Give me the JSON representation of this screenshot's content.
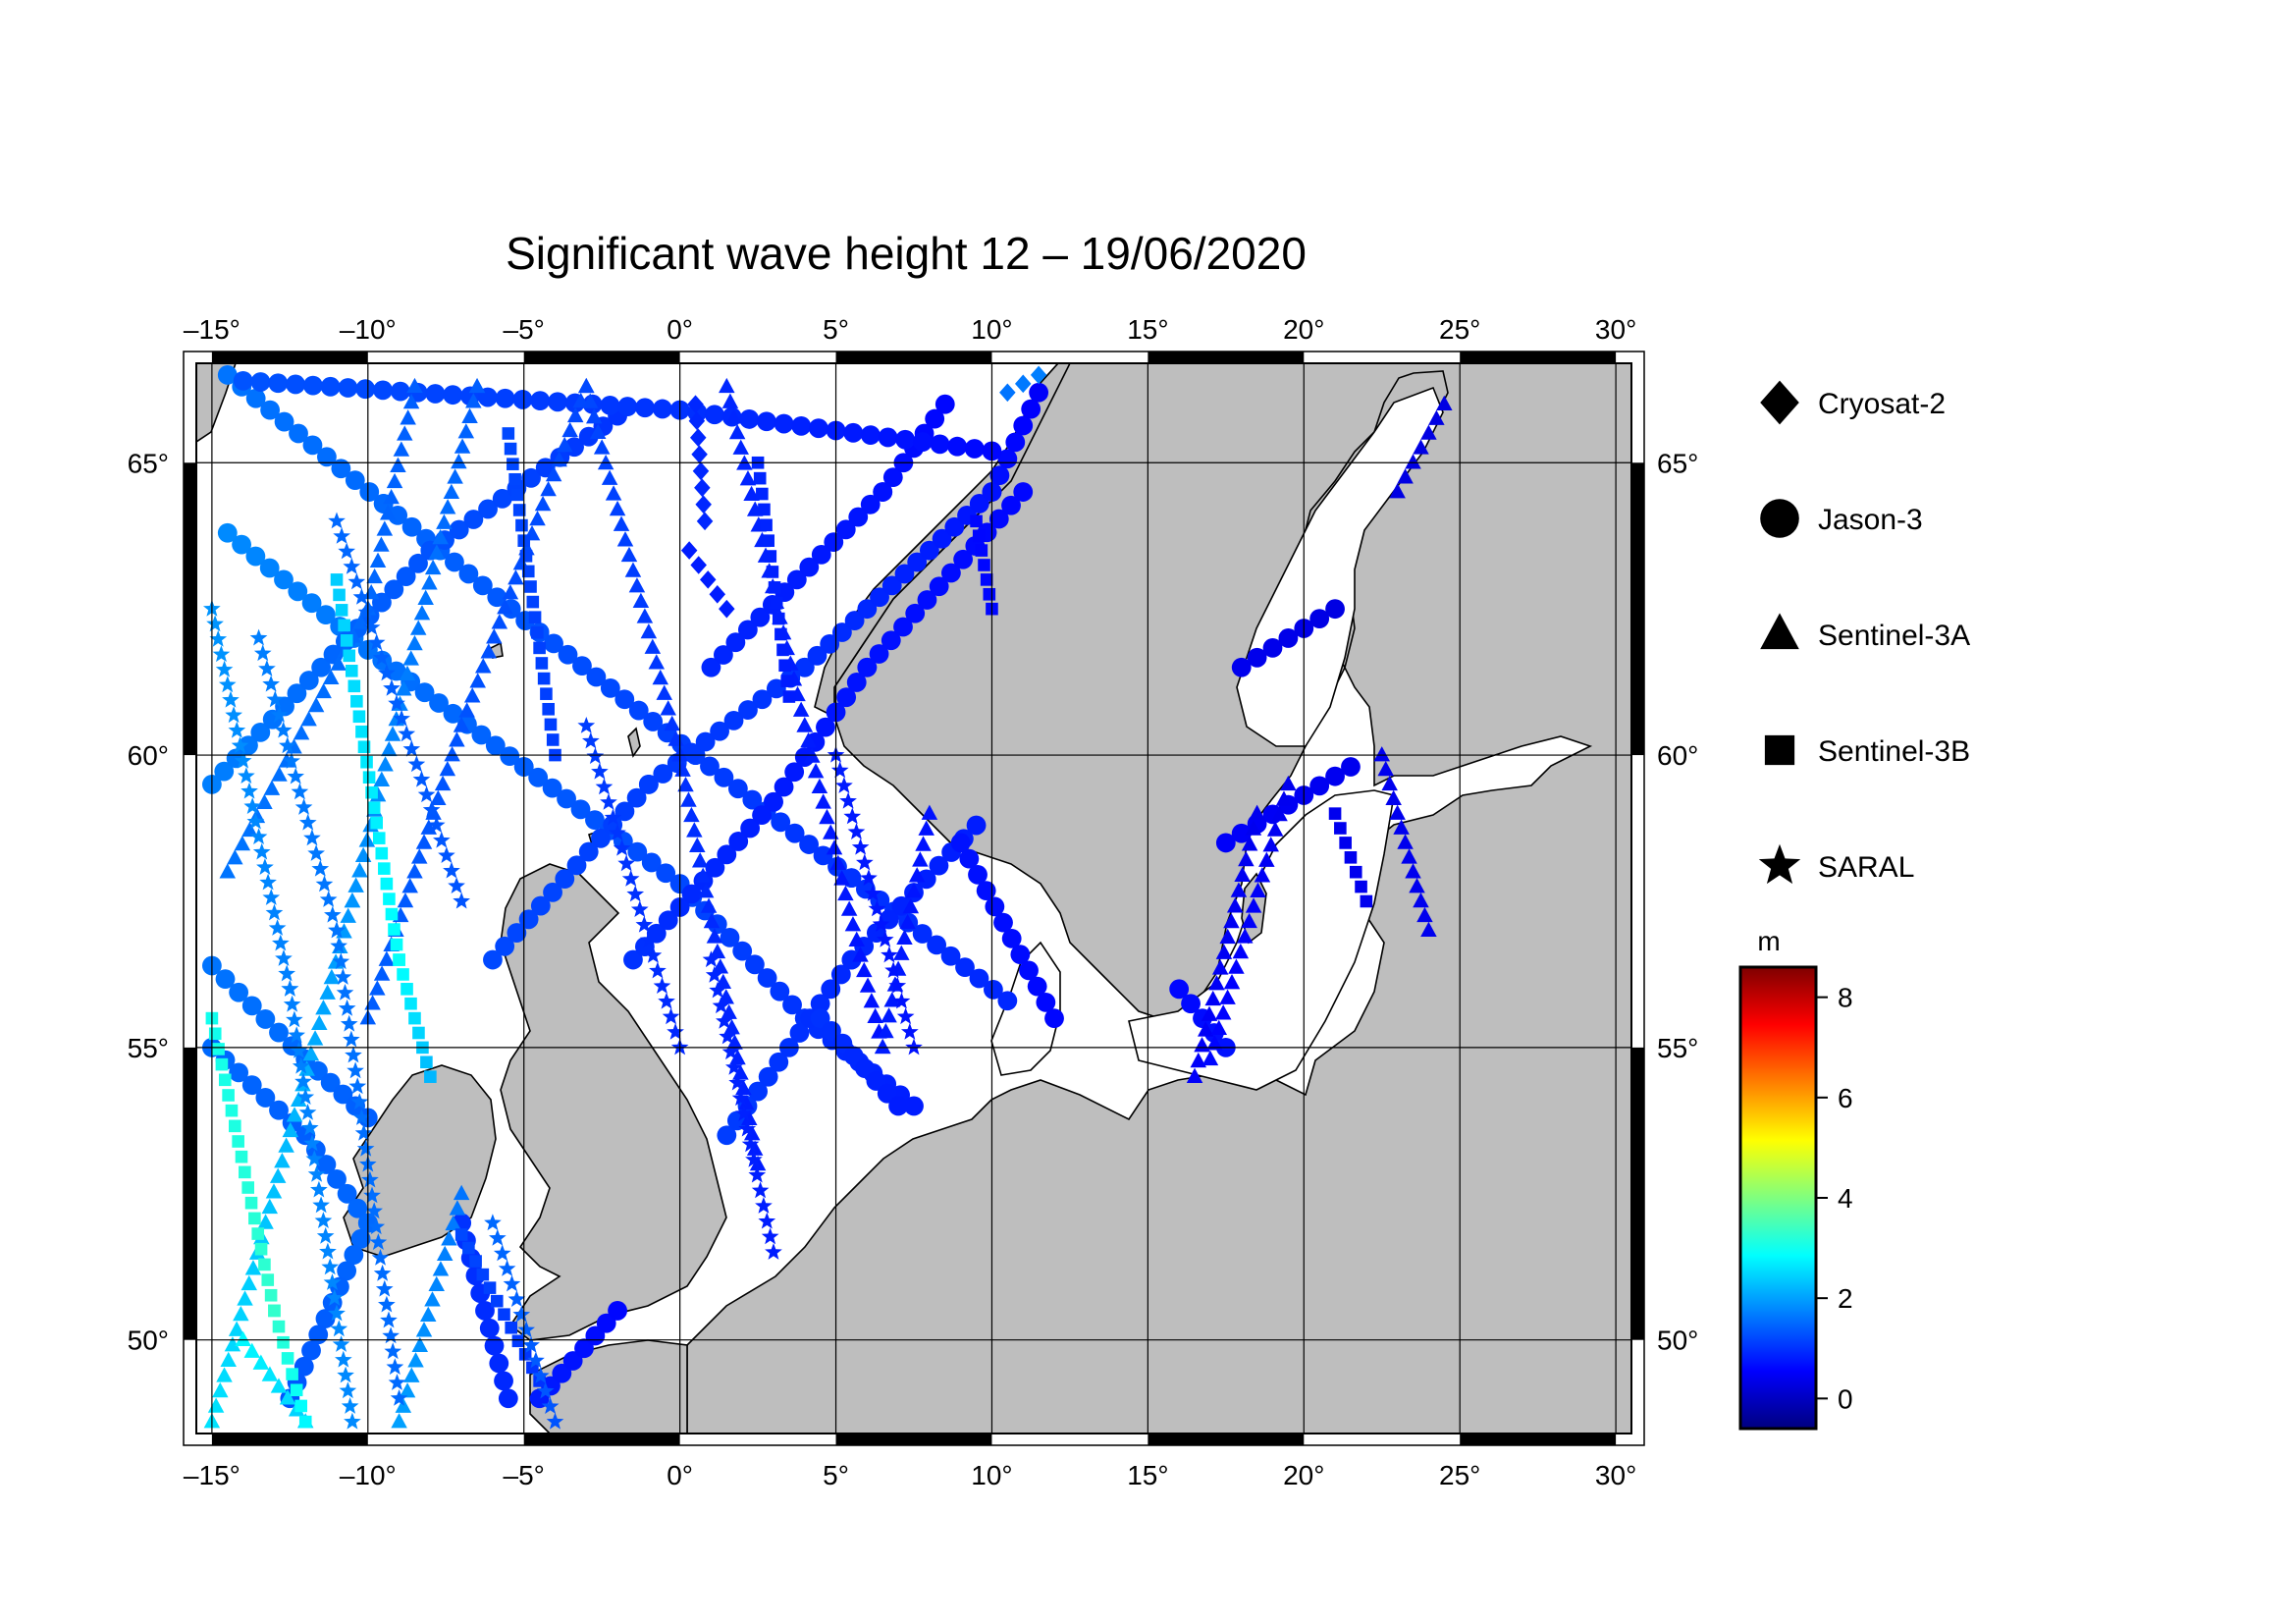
{
  "chart_data": {
    "type": "scatter",
    "title": "Significant wave height 12 – 19/06/2020",
    "x_ticks": [
      "–15°",
      "–10°",
      "–5°",
      "0°",
      "5°",
      "10°",
      "15°",
      "20°",
      "25°",
      "30°"
    ],
    "y_ticks": [
      "50°",
      "55°",
      "60°",
      "65°"
    ],
    "xlim": [
      -15.5,
      30.5
    ],
    "ylim": [
      48.4,
      66.7
    ],
    "grid": true,
    "legend": {
      "placement": "right",
      "entries": [
        {
          "name": "Cryosat-2",
          "marker": "diamond"
        },
        {
          "name": "Jason-3",
          "marker": "circle"
        },
        {
          "name": "Sentinel-3A",
          "marker": "triangle"
        },
        {
          "name": "Sentinel-3B",
          "marker": "square"
        },
        {
          "name": "SARAL",
          "marker": "star"
        }
      ]
    },
    "colorbar": {
      "unit": "m",
      "range": [
        -0.6,
        8.6
      ],
      "tick_labels": [
        "0",
        "2",
        "4",
        "6",
        "8"
      ],
      "colors": [
        "#00007f",
        "#0000ff",
        "#007fff",
        "#00ffff",
        "#7fff7f",
        "#ffff00",
        "#ff7f00",
        "#ff0000",
        "#7f0000"
      ]
    },
    "land_color": "#bebebe",
    "sea_color": "#ffffff",
    "tracks": [
      {
        "series": "Jason-3",
        "path": [
          [
            -14.5,
            66.5
          ],
          [
            -9.5,
            64.3
          ],
          [
            -4.5,
            62.1
          ],
          [
            0.5,
            60.0
          ],
          [
            5.5,
            57.9
          ],
          [
            10.5,
            55.8
          ]
        ],
        "swh": [
          1.6,
          1.5,
          1.3,
          1.1,
          1.0,
          0.9
        ]
      },
      {
        "series": "Jason-3",
        "path": [
          [
            -14.5,
            63.8
          ],
          [
            -10.0,
            61.8
          ],
          [
            -5.0,
            59.8
          ],
          [
            0.0,
            57.8
          ],
          [
            4.0,
            55.5
          ],
          [
            7.5,
            54.0
          ]
        ],
        "swh": [
          1.8,
          1.6,
          1.4,
          1.2,
          1.0,
          0.8
        ]
      },
      {
        "series": "Jason-3",
        "path": [
          [
            -15.0,
            56.4
          ],
          [
            -12.0,
            54.8
          ],
          [
            -10.0,
            53.8
          ]
        ],
        "swh": [
          1.6,
          1.5,
          1.4
        ]
      },
      {
        "series": "Jason-3",
        "path": [
          [
            -15.0,
            55.0
          ],
          [
            -12.0,
            53.5
          ],
          [
            -10.0,
            52.0
          ],
          [
            -12.5,
            49.0
          ]
        ],
        "swh": [
          1.5,
          1.4,
          1.5,
          1.3
        ]
      },
      {
        "series": "Jason-3",
        "path": [
          [
            -15.0,
            59.5
          ],
          [
            -8.0,
            63.5
          ],
          [
            -2.0,
            65.8
          ]
        ],
        "swh": [
          1.7,
          1.3,
          1.0
        ]
      },
      {
        "series": "Jason-3",
        "path": [
          [
            -6.0,
            56.5
          ],
          [
            -1.0,
            59.5
          ],
          [
            4.0,
            61.5
          ],
          [
            10.0,
            64.5
          ],
          [
            11.5,
            66.2
          ]
        ],
        "swh": [
          1.2,
          1.1,
          1.0,
          0.7,
          0.5
        ]
      },
      {
        "series": "Jason-3",
        "path": [
          [
            1.0,
            61.5
          ],
          [
            6.5,
            64.5
          ],
          [
            8.5,
            66.0
          ]
        ],
        "swh": [
          0.9,
          0.7,
          0.6
        ]
      },
      {
        "series": "Jason-3",
        "path": [
          [
            -1.5,
            56.5
          ],
          [
            3.0,
            59.2
          ],
          [
            6.0,
            61.5
          ],
          [
            11.0,
            64.5
          ]
        ],
        "swh": [
          1.0,
          0.8,
          0.7,
          0.6
        ]
      },
      {
        "series": "Jason-3",
        "path": [
          [
            1.5,
            53.5
          ],
          [
            5.5,
            56.5
          ],
          [
            9.5,
            58.8
          ]
        ],
        "swh": [
          1.1,
          0.9,
          0.8
        ]
      },
      {
        "series": "Jason-3",
        "path": [
          [
            4.5,
            55.5
          ],
          [
            7.0,
            54.0
          ]
        ],
        "swh": [
          1.0,
          0.8
        ]
      },
      {
        "series": "Jason-3",
        "path": [
          [
            9.0,
            58.5
          ],
          [
            12.0,
            55.5
          ]
        ],
        "swh": [
          0.7,
          0.6
        ]
      },
      {
        "series": "Jason-3",
        "path": [
          [
            -4.5,
            49.0
          ],
          [
            -2.0,
            50.5
          ]
        ],
        "swh": [
          0.8,
          0.6
        ]
      },
      {
        "series": "Jason-3",
        "path": [
          [
            -7.0,
            52.0
          ],
          [
            -5.5,
            49.0
          ]
        ],
        "swh": [
          1.0,
          0.9
        ]
      },
      {
        "series": "Jason-3",
        "path": [
          [
            16.0,
            56.0
          ],
          [
            17.5,
            55.0
          ]
        ],
        "swh": [
          0.6,
          0.7
        ]
      },
      {
        "series": "Jason-3",
        "path": [
          [
            17.5,
            58.5
          ],
          [
            21.5,
            59.8
          ]
        ],
        "swh": [
          0.5,
          0.4
        ]
      },
      {
        "series": "Jason-3",
        "path": [
          [
            18.0,
            61.5
          ],
          [
            21.0,
            62.5
          ]
        ],
        "swh": [
          0.4,
          0.3
        ]
      },
      {
        "series": "Jason-3",
        "path": [
          [
            -14.0,
            66.4
          ],
          [
            0.0,
            65.9
          ],
          [
            10.0,
            65.2
          ]
        ],
        "swh": [
          1.3,
          1.0,
          0.6
        ]
      },
      {
        "series": "Sentinel-3A",
        "path": [
          [
            -15.0,
            48.6
          ],
          [
            -10.5,
            57.5
          ],
          [
            -6.5,
            66.3
          ]
        ],
        "swh": [
          2.6,
          1.9,
          1.4
        ]
      },
      {
        "series": "Sentinel-3A",
        "path": [
          [
            -14.5,
            58.0
          ],
          [
            -10.0,
            62.5
          ],
          [
            -8.5,
            66.3
          ]
        ],
        "swh": [
          1.6,
          1.5,
          1.4
        ]
      },
      {
        "series": "Sentinel-3A",
        "path": [
          [
            -10.0,
            55.5
          ],
          [
            -7.0,
            60.5
          ],
          [
            -3.0,
            66.3
          ]
        ],
        "swh": [
          1.4,
          1.3,
          1.2
        ]
      },
      {
        "series": "Sentinel-3A",
        "path": [
          [
            -3.0,
            66.3
          ],
          [
            0.0,
            60.0
          ],
          [
            2.5,
            53.0
          ]
        ],
        "swh": [
          1.2,
          1.0,
          0.8
        ]
      },
      {
        "series": "Sentinel-3A",
        "path": [
          [
            1.5,
            66.3
          ],
          [
            4.0,
            60.5
          ],
          [
            6.5,
            55.0
          ]
        ],
        "swh": [
          0.9,
          0.8,
          0.7
        ]
      },
      {
        "series": "Sentinel-3A",
        "path": [
          [
            6.5,
            55.0
          ],
          [
            8.0,
            59.0
          ]
        ],
        "swh": [
          0.8,
          0.7
        ]
      },
      {
        "series": "Sentinel-3A",
        "path": [
          [
            16.5,
            54.5
          ],
          [
            18.5,
            59.0
          ]
        ],
        "swh": [
          0.5,
          0.4
        ]
      },
      {
        "series": "Sentinel-3A",
        "path": [
          [
            17.0,
            54.8
          ],
          [
            19.5,
            59.5
          ]
        ],
        "swh": [
          0.6,
          0.4
        ]
      },
      {
        "series": "Sentinel-3A",
        "path": [
          [
            22.5,
            60.0
          ],
          [
            24.0,
            57.0
          ]
        ],
        "swh": [
          0.4,
          0.4
        ]
      },
      {
        "series": "Sentinel-3A",
        "path": [
          [
            23.0,
            64.5
          ],
          [
            24.5,
            66.0
          ]
        ],
        "swh": [
          0.3,
          0.3
        ]
      },
      {
        "series": "Sentinel-3A",
        "path": [
          [
            -14.0,
            50.0
          ],
          [
            -12.0,
            48.6
          ]
        ],
        "swh": [
          2.8,
          2.4
        ]
      },
      {
        "series": "Sentinel-3A",
        "path": [
          [
            -9.0,
            48.6
          ],
          [
            -7.0,
            52.5
          ]
        ],
        "swh": [
          2.0,
          1.6
        ]
      },
      {
        "series": "Sentinel-3B",
        "path": [
          [
            -15.0,
            55.5
          ],
          [
            -13.0,
            50.5
          ],
          [
            -12.0,
            48.6
          ]
        ],
        "swh": [
          3.0,
          3.3,
          2.8
        ]
      },
      {
        "series": "Sentinel-3B",
        "path": [
          [
            -11.0,
            63.0
          ],
          [
            -9.0,
            56.5
          ],
          [
            -8.0,
            54.5
          ]
        ],
        "swh": [
          2.4,
          2.9,
          2.2
        ]
      },
      {
        "series": "Sentinel-3B",
        "path": [
          [
            -5.5,
            65.5
          ],
          [
            -4.0,
            60.0
          ]
        ],
        "swh": [
          1.2,
          1.1
        ]
      },
      {
        "series": "Sentinel-3B",
        "path": [
          [
            2.5,
            65.0
          ],
          [
            3.5,
            61.0
          ]
        ],
        "swh": [
          0.9,
          0.8
        ]
      },
      {
        "series": "Sentinel-3B",
        "path": [
          [
            9.5,
            64.0
          ],
          [
            10.0,
            62.5
          ]
        ],
        "swh": [
          0.6,
          0.6
        ]
      },
      {
        "series": "Sentinel-3B",
        "path": [
          [
            -7.0,
            51.8
          ],
          [
            -4.5,
            49.3
          ]
        ],
        "swh": [
          1.2,
          1.0
        ]
      },
      {
        "series": "Sentinel-3B",
        "path": [
          [
            21.0,
            59.0
          ],
          [
            22.0,
            57.5
          ]
        ],
        "swh": [
          0.4,
          0.4
        ]
      },
      {
        "series": "SARAL",
        "path": [
          [
            -15.0,
            62.5
          ],
          [
            -12.5,
            56.0
          ],
          [
            -10.5,
            48.6
          ]
        ],
        "swh": [
          1.9,
          1.7,
          1.8
        ]
      },
      {
        "series": "SARAL",
        "path": [
          [
            -13.5,
            62.0
          ],
          [
            -11.0,
            57.0
          ],
          [
            -9.0,
            49.0
          ]
        ],
        "swh": [
          1.7,
          1.6,
          1.5
        ]
      },
      {
        "series": "SARAL",
        "path": [
          [
            -11.0,
            64.0
          ],
          [
            -7.0,
            57.5
          ]
        ],
        "swh": [
          1.5,
          1.3
        ]
      },
      {
        "series": "SARAL",
        "path": [
          [
            -3.0,
            60.5
          ],
          [
            0.0,
            55.0
          ]
        ],
        "swh": [
          1.1,
          0.9
        ]
      },
      {
        "series": "SARAL",
        "path": [
          [
            1.0,
            56.5
          ],
          [
            3.0,
            51.5
          ]
        ],
        "swh": [
          0.9,
          0.8
        ]
      },
      {
        "series": "SARAL",
        "path": [
          [
            5.0,
            60.0
          ],
          [
            7.5,
            55.0
          ]
        ],
        "swh": [
          0.8,
          0.7
        ]
      },
      {
        "series": "SARAL",
        "path": [
          [
            -6.0,
            52.0
          ],
          [
            -4.0,
            48.6
          ]
        ],
        "swh": [
          1.5,
          1.3
        ]
      },
      {
        "series": "Cryosat-2",
        "path": [
          [
            0.5,
            66.0
          ],
          [
            0.8,
            64.0
          ]
        ],
        "swh": [
          0.9,
          0.9
        ]
      },
      {
        "series": "Cryosat-2",
        "path": [
          [
            0.3,
            63.5
          ],
          [
            1.5,
            62.5
          ]
        ],
        "swh": [
          0.8,
          0.8
        ]
      },
      {
        "series": "Cryosat-2",
        "path": [
          [
            10.5,
            66.2
          ],
          [
            11.5,
            66.5
          ]
        ],
        "swh": [
          1.6,
          1.7
        ]
      }
    ]
  }
}
